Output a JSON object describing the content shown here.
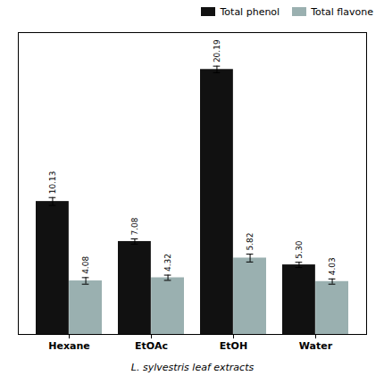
{
  "chart_data": {
    "type": "bar",
    "xlabel": "L. sylvestris leaf extracts",
    "categories": [
      "Hexane",
      "EtOAc",
      "EtOH",
      "Water"
    ],
    "series": [
      {
        "name": "Total phenol",
        "color": "#111111",
        "values": [
          10.13,
          7.08,
          20.19,
          5.3
        ],
        "errors": [
          0.3,
          0.2,
          0.25,
          0.2
        ],
        "value_labels": [
          "10.13",
          "7.08",
          "20.19",
          "5.30"
        ]
      },
      {
        "name": "Total flavone",
        "color": "#9ab0b0",
        "values": [
          4.08,
          4.32,
          5.82,
          4.03
        ],
        "errors": [
          0.25,
          0.2,
          0.3,
          0.2
        ],
        "value_labels": [
          "4.08",
          "4.32",
          "5.82",
          "4.03"
        ]
      }
    ],
    "ylim": [
      0,
      23
    ],
    "data_labels": true,
    "tick_labels": "x",
    "legend": "upper right",
    "grid": false
  }
}
